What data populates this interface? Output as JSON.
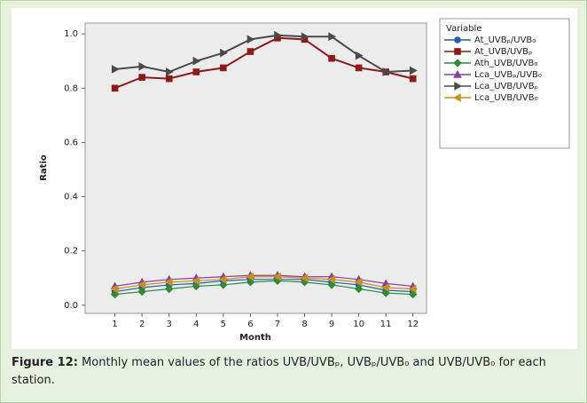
{
  "chart_data": {
    "type": "line",
    "x_label": "Month",
    "y_label": "Ratio",
    "legend_title": "Variable",
    "x": [
      1,
      2,
      3,
      4,
      5,
      6,
      7,
      8,
      9,
      10,
      11,
      12
    ],
    "xlim": [
      -0.1,
      12.5
    ],
    "xticks": [
      1,
      2,
      3,
      4,
      5,
      6,
      7,
      8,
      9,
      10,
      11,
      12
    ],
    "ylim": [
      -0.03,
      1.04
    ],
    "yticks": [
      {
        "value": 0,
        "label": "0.0"
      },
      0.2,
      0.4,
      0.6,
      0.8,
      {
        "value": 1,
        "label": "1.0"
      }
    ],
    "legend": "right",
    "series": [
      {
        "name": "At_UVBₚ/UVB₀",
        "color": "#1f5fa8",
        "marker": "circle",
        "values": [
          0.05,
          0.065,
          0.075,
          0.08,
          0.09,
          0.095,
          0.095,
          0.095,
          0.085,
          0.075,
          0.055,
          0.05
        ]
      },
      {
        "name": "At_UVB/UVBₚ",
        "color": "#8b1a1a",
        "marker": "square",
        "values": [
          0.8,
          0.84,
          0.835,
          0.86,
          0.875,
          0.935,
          0.985,
          0.98,
          0.91,
          0.875,
          0.86,
          0.835
        ]
      },
      {
        "name": "Ath_UVB/UVB₀",
        "color": "#2e8b3a",
        "marker": "diamond",
        "values": [
          0.04,
          0.05,
          0.06,
          0.07,
          0.075,
          0.085,
          0.09,
          0.085,
          0.075,
          0.06,
          0.045,
          0.04
        ]
      },
      {
        "name": "Lca_UVBₚ/UVB₀",
        "color": "#8a3fa0",
        "marker": "triangle-up",
        "values": [
          0.07,
          0.085,
          0.095,
          0.1,
          0.105,
          0.11,
          0.11,
          0.105,
          0.105,
          0.095,
          0.08,
          0.07
        ]
      },
      {
        "name": "Lca_UVB/UVBₚ",
        "color": "#4a4a4a",
        "marker": "triangle-right",
        "values": [
          0.87,
          0.88,
          0.86,
          0.9,
          0.93,
          0.98,
          0.995,
          0.99,
          0.99,
          0.92,
          0.86,
          0.865
        ]
      },
      {
        "name": "Lca_UVB/UVB₀",
        "color": "#c8901a",
        "marker": "triangle-left",
        "values": [
          0.06,
          0.075,
          0.085,
          0.09,
          0.095,
          0.105,
          0.105,
          0.1,
          0.095,
          0.085,
          0.065,
          0.06
        ]
      }
    ]
  },
  "caption": {
    "label": "Figure 12:",
    "text": "Monthly mean values of the ratios UVB/UVBₚ, UVBₚ/UVB₀ and UVB/UVB₀ for each station."
  }
}
